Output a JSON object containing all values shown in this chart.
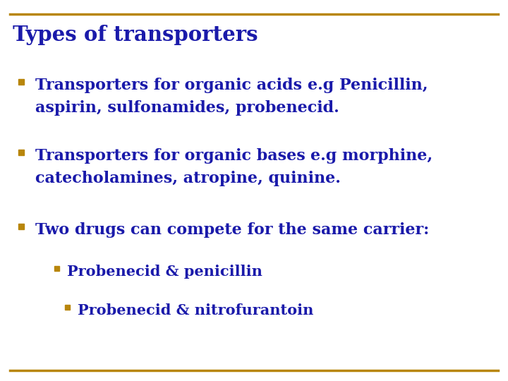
{
  "title": "Types of transporters",
  "title_color": "#1a1aaa",
  "title_fontsize": 21,
  "background_color": "#ffffff",
  "border_color": "#b8860b",
  "border_linewidth": 2.5,
  "bullet_color": "#b8860b",
  "blue_color": "#1a1aaa",
  "main_fontsize": 16,
  "sub_fontsize": 15,
  "bullet1_line1_blue": "Transporters for organic acids ",
  "bullet1_line1_rest": "e.g Penicillin,",
  "bullet1_line2": "aspirin, sulfonamides, probenecid.",
  "bullet2_line1_blue": "Transporters for organic bases ",
  "bullet2_line1_rest": "e.g morphine,",
  "bullet2_line2": "catecholamines, atropine, quinine.",
  "bullet3_line1": "Two drugs can compete for the same carrier:",
  "sub_bullet1": "Probenecid & penicillin",
  "sub_bullet2": "Probenecid & nitrofurantoin",
  "fig_width": 7.2,
  "fig_height": 5.4,
  "dpi": 100
}
